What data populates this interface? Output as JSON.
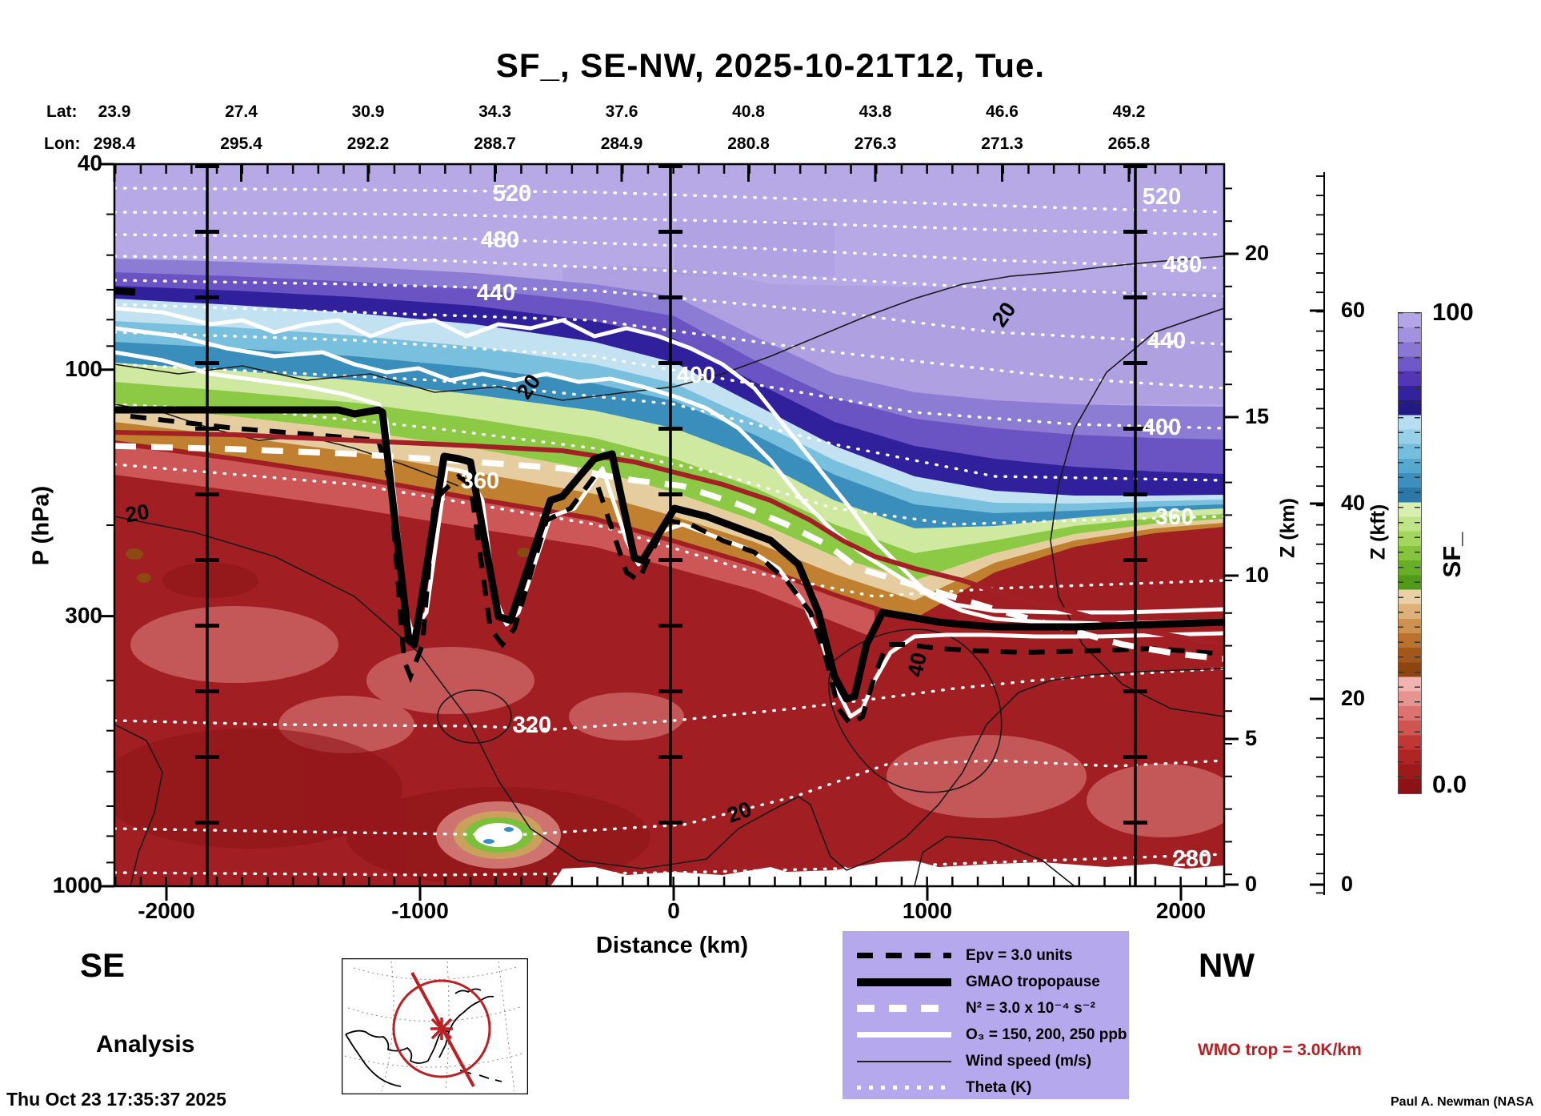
{
  "title": "SF_, SE-NW, 2025-10-21T12, Tue.",
  "top_axis": {
    "lat_label": "Lat:",
    "lon_label": "Lon:",
    "lat": [
      "23.9",
      "27.4",
      "30.9",
      "34.3",
      "37.6",
      "40.8",
      "43.8",
      "46.6",
      "49.2"
    ],
    "lon": [
      "298.4",
      "295.4",
      "292.2",
      "288.7",
      "284.9",
      "280.8",
      "276.3",
      "271.3",
      "265.8"
    ]
  },
  "axes": {
    "y_left": {
      "label": "P (hPa)",
      "ticks": [
        "40",
        "100",
        "300",
        "1000"
      ]
    },
    "x_bottom": {
      "label": "Distance (km)",
      "ticks": [
        "-2000",
        "-1000",
        "0",
        "1000",
        "2000"
      ]
    },
    "y_right_km": {
      "label": "Z (km)",
      "ticks": [
        "20",
        "15",
        "10",
        "5",
        "0"
      ]
    },
    "y_right_kft": {
      "label": "Z (kft)",
      "ticks": [
        "60",
        "40",
        "20",
        "0"
      ]
    }
  },
  "endpoints": {
    "left": "SE",
    "right": "NW"
  },
  "colorbar": {
    "title": "SF_",
    "max": "100",
    "min": "0.0",
    "colors": [
      "#b3a5e8",
      "#a191de",
      "#8a77d3",
      "#6f58c7",
      "#5336b4",
      "#33219e",
      "#241a86",
      "#b7ddf0",
      "#98cfe9",
      "#76bede",
      "#55a9d0",
      "#3b90bd",
      "#2a77a8",
      "#d9efb2",
      "#c0e488",
      "#a3d65e",
      "#85c43c",
      "#68ae27",
      "#529a1a",
      "#ead0a4",
      "#ddb179",
      "#cd9150",
      "#bb722f",
      "#a3571a",
      "#8c4410",
      "#f0b3af",
      "#e79390",
      "#dc7370",
      "#cf5452",
      "#c03836",
      "#ae2623",
      "#9c1a1c",
      "#8c1215"
    ]
  },
  "legend": {
    "items": [
      {
        "style": "black-dashed",
        "label": "Epv = 3.0 units"
      },
      {
        "style": "black-thick",
        "label": "GMAO tropopause"
      },
      {
        "style": "white-dashed",
        "label": "N² = 3.0 x 10⁻⁴ s⁻²"
      },
      {
        "style": "white-solid",
        "label": "O₃ = 150, 200, 250 ppb"
      },
      {
        "style": "black-thin",
        "label": "Wind speed (m/s)"
      },
      {
        "style": "white-dotted",
        "label": "Theta (K)"
      }
    ]
  },
  "annotations": {
    "analysis": "Analysis",
    "timestamp": "Thu Oct 23 17:35:37 2025",
    "wmo": "WMO trop = 3.0K/km",
    "credit": "Paul A. Newman (NASA"
  },
  "chart_data": {
    "type": "heatmap",
    "description": "Filled-contour vertical cross-section (SE to NW) of SF_ (0-100) vs pressure and distance along path, with theta, wind speed, ozone, N2, Epv and tropopause overlays",
    "x": {
      "label": "Distance (km)",
      "ticks": [
        -2000,
        -1000,
        0,
        1000,
        2000
      ],
      "range": [
        -2205,
        2170
      ]
    },
    "y": {
      "label": "P (hPa)",
      "scale": "log",
      "ticks": [
        40,
        100,
        300,
        1000
      ],
      "range": [
        40,
        1000
      ]
    },
    "y_right_km": {
      "label": "Z (km)",
      "ticks": [
        20,
        15,
        10,
        5,
        0
      ]
    },
    "y_right_kft": {
      "label": "Z (kft)",
      "ticks": [
        60,
        40,
        20,
        0
      ]
    },
    "field": {
      "name": "SF_",
      "min": 0.0,
      "max": 100
    },
    "path_lat": [
      23.9,
      27.4,
      30.9,
      34.3,
      37.6,
      40.8,
      43.8,
      46.6,
      49.2
    ],
    "path_lon": [
      298.4,
      295.4,
      292.2,
      288.7,
      284.9,
      280.8,
      276.3,
      271.3,
      265.8
    ],
    "theta_contours_K": [
      280,
      300,
      320,
      340,
      360,
      380,
      400,
      420,
      440,
      460,
      480,
      500,
      520
    ],
    "theta_left_labels": [
      "520",
      "480",
      "440",
      "400",
      "360",
      "320"
    ],
    "theta_right_labels": [
      "520",
      "480",
      "440",
      "400",
      "360",
      "280"
    ],
    "wind_speed_labels_ms": [
      "20",
      "20",
      "20",
      "20",
      "40"
    ],
    "ozone_contours_ppb": [
      150,
      200,
      250
    ],
    "epv_contour": "3.0 units",
    "n2_contour": "3.0 x 10^-4 s^-2",
    "wmo_tropopause_criterion": "3.0 K/km",
    "vertical_reference_lines_km": [
      -1850,
      0,
      1830
    ],
    "legend_position": "bottom-center",
    "grid": "off"
  }
}
